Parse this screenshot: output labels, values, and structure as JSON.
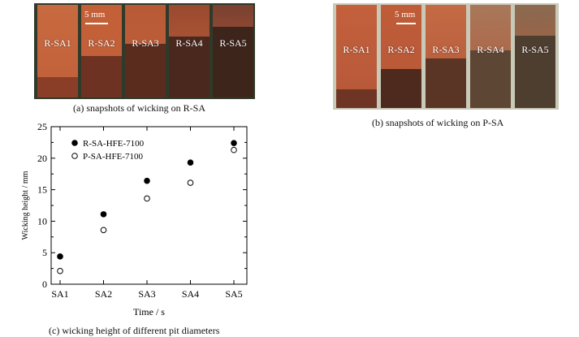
{
  "panel_a": {
    "caption": "(a) snapshots of wicking on R-SA",
    "scale_label": "5 mm",
    "samples": [
      "R-SA1",
      "R-SA2",
      "R-SA3",
      "R-SA4",
      "R-SA5"
    ],
    "background_color": "#2f3a2a",
    "sample_color": "#c0603a"
  },
  "panel_b": {
    "caption": "(b) snapshots of wicking on P-SA",
    "scale_label": "5 mm",
    "samples": [
      "R-SA1",
      "R-SA2",
      "R-SA3",
      "R-SA4",
      "R-SA5"
    ],
    "background_color": "#c9c9b8",
    "sample_color": "#b5583a"
  },
  "panel_c": {
    "caption": "(c) wicking height of different pit diameters"
  },
  "chart_data": {
    "type": "scatter",
    "categories": [
      "SA1",
      "SA2",
      "SA3",
      "SA4",
      "SA5"
    ],
    "xlabel": "Time / s",
    "ylabel": "Wicking height / mm",
    "ylim": [
      0,
      25
    ],
    "yticks": [
      0,
      5,
      10,
      15,
      20,
      25
    ],
    "legend_position": "top-left",
    "series": [
      {
        "name": "R-SA-HFE-7100",
        "marker": "filled-circle",
        "values": [
          4.4,
          11.1,
          16.4,
          19.3,
          22.4
        ]
      },
      {
        "name": "P-SA-HFE-7100",
        "marker": "open-circle",
        "values": [
          2.1,
          8.6,
          13.6,
          16.1,
          21.3
        ]
      }
    ]
  }
}
